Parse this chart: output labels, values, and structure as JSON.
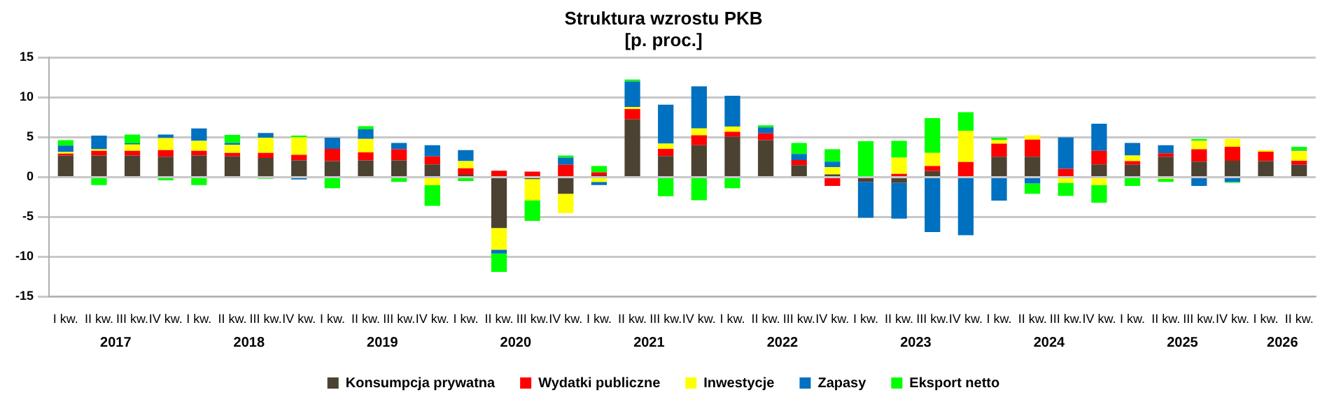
{
  "chart_data": {
    "type": "bar",
    "title": "Struktura wzrostu PKB",
    "subtitle": "[p. proc.]",
    "categories": [
      "I kw.",
      "II kw.",
      "III kw.",
      "IV kw.",
      "I kw.",
      "II kw.",
      "III kw.",
      "IV kw.",
      "I kw.",
      "II kw.",
      "III kw.",
      "IV kw.",
      "I kw.",
      "II kw.",
      "III kw.",
      "IV kw.",
      "I kw.",
      "II kw.",
      "III kw.",
      "IV kw.",
      "I kw.",
      "II kw.",
      "III kw.",
      "IV kw.",
      "I kw.",
      "II kw.",
      "III kw.",
      "IV kw.",
      "I kw.",
      "II kw.",
      "III kw.",
      "IV kw.",
      "I kw.",
      "II kw.",
      "III kw.",
      "IV kw.",
      "I kw.",
      "II kw."
    ],
    "annotations": [
      "2017",
      "2018",
      "2019",
      "2020",
      "2021",
      "2022",
      "2023",
      "2024",
      "2025",
      "2026"
    ],
    "stacked": true,
    "series": [
      {
        "name": "Konsumpcja prywatna",
        "color": "#4b4232",
        "values": [
          2.7,
          2.7,
          2.7,
          2.55,
          2.7,
          2.6,
          2.4,
          2.1,
          2.0,
          2.1,
          2.1,
          1.6,
          0.3,
          -6.4,
          -0.25,
          -2.1,
          0.2,
          7.25,
          2.65,
          4.0,
          5.05,
          4.65,
          1.5,
          0.35,
          -0.6,
          -0.7,
          0.75,
          null,
          2.55,
          2.55,
          0,
          1.6,
          1.55,
          2.55,
          1.95,
          2.05,
          2.0,
          1.55
        ]
      },
      {
        "name": "Wydatki publiczne",
        "color": "#ff0000",
        "values": [
          0.25,
          0.6,
          0.6,
          0.85,
          0.6,
          0.45,
          0.65,
          0.7,
          1.55,
          1.0,
          1.4,
          1.0,
          0.8,
          0.8,
          0.7,
          1.55,
          0.4,
          1.3,
          0.9,
          1.25,
          0.65,
          0.85,
          0.65,
          -1.1,
          0,
          0.4,
          0.65,
          1.9,
          1.65,
          2.15,
          1.05,
          1.7,
          0.45,
          0.45,
          1.55,
          1.75,
          1.2,
          0.5
        ]
      },
      {
        "name": "Inwestycje",
        "color": "#ffff00",
        "values": [
          0.2,
          0.2,
          0.8,
          1.5,
          1.25,
          1.0,
          1.9,
          2.2,
          0,
          1.7,
          0,
          -1.0,
          0.9,
          -2.7,
          -2.65,
          -2.4,
          -0.6,
          0.25,
          0.65,
          0.85,
          0.65,
          null,
          null,
          0.9,
          0,
          2.05,
          1.65,
          3.9,
          0.45,
          0.55,
          -0.7,
          -1.0,
          0.7,
          -0.2,
          1.05,
          1.0,
          0.2,
          1.25
        ]
      },
      {
        "name": "Zapasy",
        "color": "#0070c0",
        "values": [
          0.8,
          1.7,
          0.15,
          0.45,
          1.55,
          0.25,
          0.6,
          -0.3,
          1.4,
          1.2,
          0.8,
          1.4,
          1.4,
          -0.5,
          0,
          0.9,
          -0.4,
          3.2,
          4.9,
          5.3,
          3.85,
          0.75,
          0.75,
          0.7,
          -4.5,
          -4.5,
          -6.9,
          -7.3,
          -2.95,
          -0.8,
          3.95,
          3.4,
          1.6,
          1.0,
          -1.1,
          -0.6,
          0,
          0.1
        ]
      },
      {
        "name": "Eksport netto",
        "color": "#00ff00",
        "values": [
          0.7,
          -1.0,
          1.1,
          -0.4,
          -1.0,
          1.0,
          -0.2,
          0.2,
          -1.4,
          0.4,
          -0.6,
          -2.6,
          -0.5,
          -2.3,
          -2.6,
          0.25,
          0.8,
          0.25,
          -2.4,
          -2.9,
          -1.4,
          0.25,
          1.4,
          1.55,
          4.5,
          2.1,
          4.35,
          2.35,
          0.3,
          -1.3,
          -1.65,
          -2.2,
          -1.1,
          -0.4,
          0.25,
          -0.1,
          0,
          0.4
        ]
      }
    ],
    "ylim": [
      -15,
      15
    ],
    "yticks": [
      -15,
      -10,
      -5,
      0,
      5,
      10,
      15
    ],
    "grid": "y",
    "legend": "bottom"
  }
}
